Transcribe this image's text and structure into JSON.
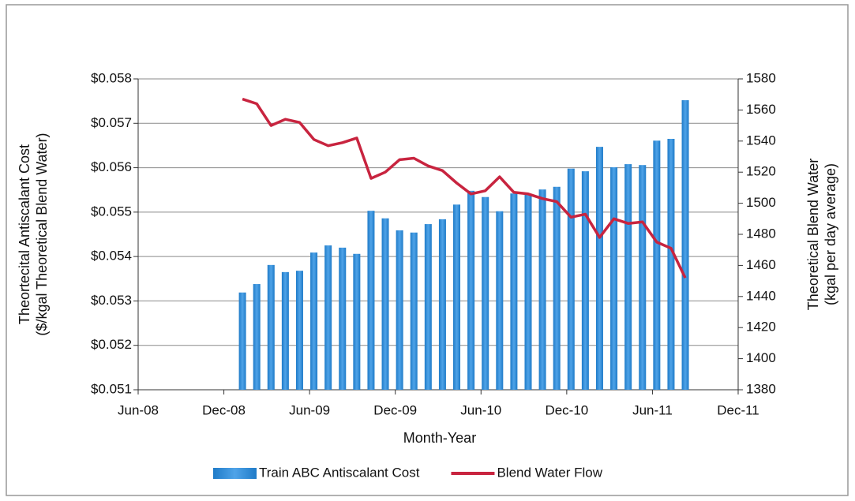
{
  "chart_data": {
    "type": "bar-line",
    "x_label": "Month-Year",
    "y_label": [
      "Theortecital Antiscalant Cost",
      "($/kgal Theoretical Blend Water)"
    ],
    "y2_label": [
      "Theoretical Blend Water",
      "(kgal per day average)"
    ],
    "x": [
      "Jan-09",
      "Feb-09",
      "Mar-09",
      "Apr-09",
      "May-09",
      "Jun-09",
      "Jul-09",
      "Aug-09",
      "Sep-09",
      "Oct-09",
      "Nov-09",
      "Dec-09",
      "Jan-10",
      "Feb-10",
      "Mar-10",
      "Apr-10",
      "May-10",
      "Jun-10",
      "Jul-10",
      "Aug-10",
      "Sep-10",
      "Oct-10",
      "Nov-10",
      "Dec-10",
      "Jan-11",
      "Feb-11",
      "Mar-11",
      "Apr-11",
      "May-11",
      "Jun-11",
      "Jul-11",
      "Aug-11"
    ],
    "xlim": [
      "Jun-08",
      "Dec-11"
    ],
    "xticks": [
      "Jun-08",
      "Dec-08",
      "Jun-09",
      "Dec-09",
      "Jun-10",
      "Dec-10",
      "Jun-11",
      "Dec-11"
    ],
    "ylim": [
      0.051,
      0.058
    ],
    "yticks": [
      {
        "value": 0.051,
        "label": "$0.051"
      },
      {
        "value": 0.052,
        "label": "$0.052"
      },
      {
        "value": 0.053,
        "label": "$0.053"
      },
      {
        "value": 0.054,
        "label": "$0.054"
      },
      {
        "value": 0.055,
        "label": "$0.055"
      },
      {
        "value": 0.056,
        "label": "$0.056"
      },
      {
        "value": 0.057,
        "label": "$0.057"
      },
      {
        "value": 0.058,
        "label": "$0.058"
      }
    ],
    "y2lim": [
      1380,
      1580
    ],
    "y2ticks": [
      1380,
      1400,
      1420,
      1440,
      1460,
      1480,
      1500,
      1520,
      1540,
      1560,
      1580
    ],
    "grid": true,
    "legend": "bottom",
    "series": [
      {
        "name": "Train ABC Antiscalant Cost",
        "type": "bar",
        "color": "#1f7bc8",
        "axis": "y",
        "values": [
          0.05319,
          0.05338,
          0.05381,
          0.05365,
          0.05368,
          0.05409,
          0.05425,
          0.0542,
          0.05406,
          0.05503,
          0.05486,
          0.05459,
          0.05454,
          0.05473,
          0.05484,
          0.05517,
          0.05548,
          0.05534,
          0.05502,
          0.05542,
          0.0554,
          0.05551,
          0.05557,
          0.05598,
          0.05592,
          0.05647,
          0.05601,
          0.05608,
          0.05606,
          0.05661,
          0.05665,
          0.05752
        ]
      },
      {
        "name": "Blend Water Flow",
        "type": "line",
        "color": "#c8243f",
        "axis": "y2",
        "values": [
          1567,
          1564,
          1550,
          1554,
          1552,
          1541,
          1537,
          1539,
          1542,
          1516,
          1520,
          1528,
          1529,
          1524,
          1521,
          1513,
          1506,
          1508,
          1517,
          1507,
          1506,
          1503,
          1501,
          1491,
          1493,
          1478,
          1490,
          1487,
          1488,
          1475,
          1471,
          1452
        ]
      }
    ]
  }
}
